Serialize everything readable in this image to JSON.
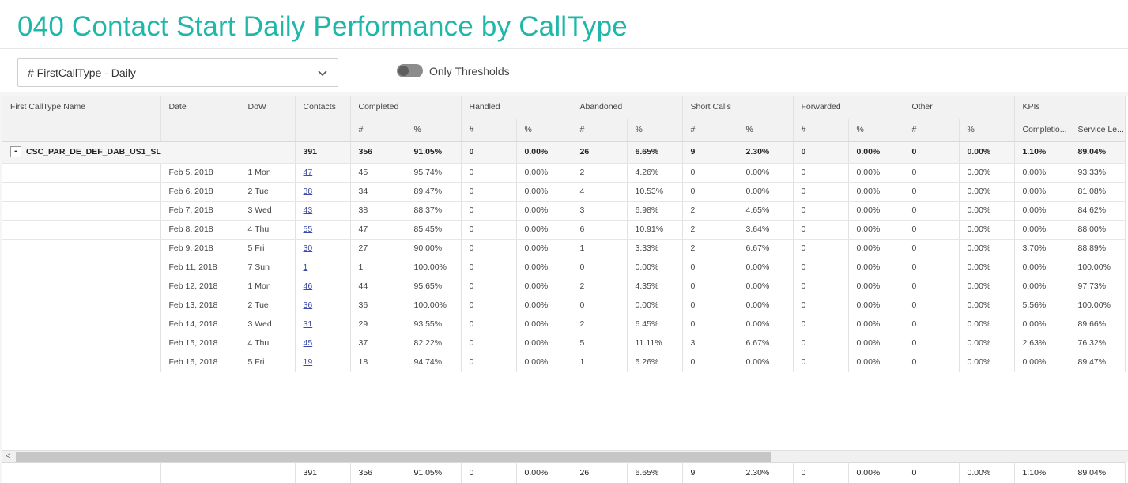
{
  "page": {
    "title": "040 Contact Start Daily Performance by CallType",
    "accent_color": "#1fb7a8"
  },
  "filter": {
    "selected": "# FirstCallType - Daily",
    "icon": "chevron-down-icon"
  },
  "toggle": {
    "label": "Only Thresholds",
    "on": false
  },
  "grid": {
    "columns": [
      "First CallType Name",
      "Date",
      "DoW",
      "Contacts"
    ],
    "groups": [
      "Completed",
      "Handled",
      "Abandoned",
      "Short Calls",
      "Forwarded",
      "Other",
      "KPIs"
    ],
    "subheaders": [
      "#",
      "%",
      "#",
      "%",
      "#",
      "%",
      "#",
      "%",
      "#",
      "%",
      "#",
      "%",
      "Completio...",
      "Service Le..."
    ],
    "group_row": {
      "toggle_symbol": "-",
      "name": "CSC_PAR_DE_DEF_DAB_US1_SL",
      "cells": [
        "391",
        "356",
        "91.05%",
        "0",
        "0.00%",
        "26",
        "6.65%",
        "9",
        "2.30%",
        "0",
        "0.00%",
        "0",
        "0.00%",
        "1.10%",
        "89.04%"
      ]
    },
    "rows": [
      [
        "Feb 5, 2018",
        "1 Mon",
        "47",
        "45",
        "95.74%",
        "0",
        "0.00%",
        "2",
        "4.26%",
        "0",
        "0.00%",
        "0",
        "0.00%",
        "0",
        "0.00%",
        "0.00%",
        "93.33%"
      ],
      [
        "Feb 6, 2018",
        "2 Tue",
        "38",
        "34",
        "89.47%",
        "0",
        "0.00%",
        "4",
        "10.53%",
        "0",
        "0.00%",
        "0",
        "0.00%",
        "0",
        "0.00%",
        "0.00%",
        "81.08%"
      ],
      [
        "Feb 7, 2018",
        "3 Wed",
        "43",
        "38",
        "88.37%",
        "0",
        "0.00%",
        "3",
        "6.98%",
        "2",
        "4.65%",
        "0",
        "0.00%",
        "0",
        "0.00%",
        "0.00%",
        "84.62%"
      ],
      [
        "Feb 8, 2018",
        "4 Thu",
        "55",
        "47",
        "85.45%",
        "0",
        "0.00%",
        "6",
        "10.91%",
        "2",
        "3.64%",
        "0",
        "0.00%",
        "0",
        "0.00%",
        "0.00%",
        "88.00%"
      ],
      [
        "Feb 9, 2018",
        "5 Fri",
        "30",
        "27",
        "90.00%",
        "0",
        "0.00%",
        "1",
        "3.33%",
        "2",
        "6.67%",
        "0",
        "0.00%",
        "0",
        "0.00%",
        "3.70%",
        "88.89%"
      ],
      [
        "Feb 11, 2018",
        "7 Sun",
        "1",
        "1",
        "100.00%",
        "0",
        "0.00%",
        "0",
        "0.00%",
        "0",
        "0.00%",
        "0",
        "0.00%",
        "0",
        "0.00%",
        "0.00%",
        "100.00%"
      ],
      [
        "Feb 12, 2018",
        "1 Mon",
        "46",
        "44",
        "95.65%",
        "0",
        "0.00%",
        "2",
        "4.35%",
        "0",
        "0.00%",
        "0",
        "0.00%",
        "0",
        "0.00%",
        "0.00%",
        "97.73%"
      ],
      [
        "Feb 13, 2018",
        "2 Tue",
        "36",
        "36",
        "100.00%",
        "0",
        "0.00%",
        "0",
        "0.00%",
        "0",
        "0.00%",
        "0",
        "0.00%",
        "0",
        "0.00%",
        "5.56%",
        "100.00%"
      ],
      [
        "Feb 14, 2018",
        "3 Wed",
        "31",
        "29",
        "93.55%",
        "0",
        "0.00%",
        "2",
        "6.45%",
        "0",
        "0.00%",
        "0",
        "0.00%",
        "0",
        "0.00%",
        "0.00%",
        "89.66%"
      ],
      [
        "Feb 15, 2018",
        "4 Thu",
        "45",
        "37",
        "82.22%",
        "0",
        "0.00%",
        "5",
        "11.11%",
        "3",
        "6.67%",
        "0",
        "0.00%",
        "0",
        "0.00%",
        "2.63%",
        "76.32%"
      ],
      [
        "Feb 16, 2018",
        "5 Fri",
        "19",
        "18",
        "94.74%",
        "0",
        "0.00%",
        "1",
        "5.26%",
        "0",
        "0.00%",
        "0",
        "0.00%",
        "0",
        "0.00%",
        "0.00%",
        "89.47%"
      ]
    ],
    "footer": [
      "",
      "",
      "",
      "391",
      "356",
      "91.05%",
      "0",
      "0.00%",
      "26",
      "6.65%",
      "9",
      "2.30%",
      "0",
      "0.00%",
      "0",
      "0.00%",
      "1.10%",
      "89.04%"
    ],
    "scroll_left_symbol": "<"
  }
}
